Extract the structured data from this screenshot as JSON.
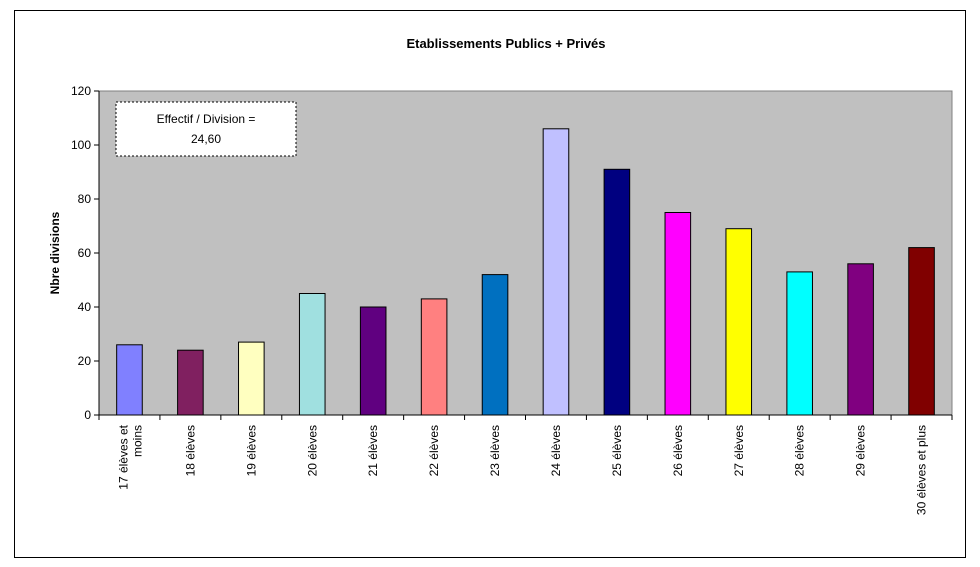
{
  "chart_data": {
    "type": "bar",
    "title": "Etablissements Publics + Privés",
    "xlabel": "",
    "ylabel": "Nbre divisions",
    "ylim": [
      0,
      120
    ],
    "y_ticks": [
      0,
      20,
      40,
      60,
      80,
      100,
      120
    ],
    "grid": false,
    "plot_background": "#C0C0C0",
    "categories": [
      "17 élèves et moins",
      "18 élèves",
      "19 élèves",
      "20 élèves",
      "21 élèves",
      "22 élèves",
      "23 élèves",
      "24 élèves",
      "25 élèves",
      "26 élèves",
      "27 élèves",
      "28 élèves",
      "29 élèves",
      "30 élèves et plus"
    ],
    "values": [
      26,
      24,
      27,
      45,
      40,
      43,
      52,
      106,
      91,
      75,
      69,
      53,
      56,
      62
    ],
    "colors": [
      "#8080FF",
      "#802060",
      "#FFFFC0",
      "#A0E0E0",
      "#600080",
      "#FF8080",
      "#0070C0",
      "#C0C0FF",
      "#000080",
      "#FF00FF",
      "#FFFF00",
      "#00FFFF",
      "#800080",
      "#800000"
    ],
    "annotations": [
      {
        "line1": "Effectif / Division =",
        "line2": "24,60"
      }
    ]
  }
}
